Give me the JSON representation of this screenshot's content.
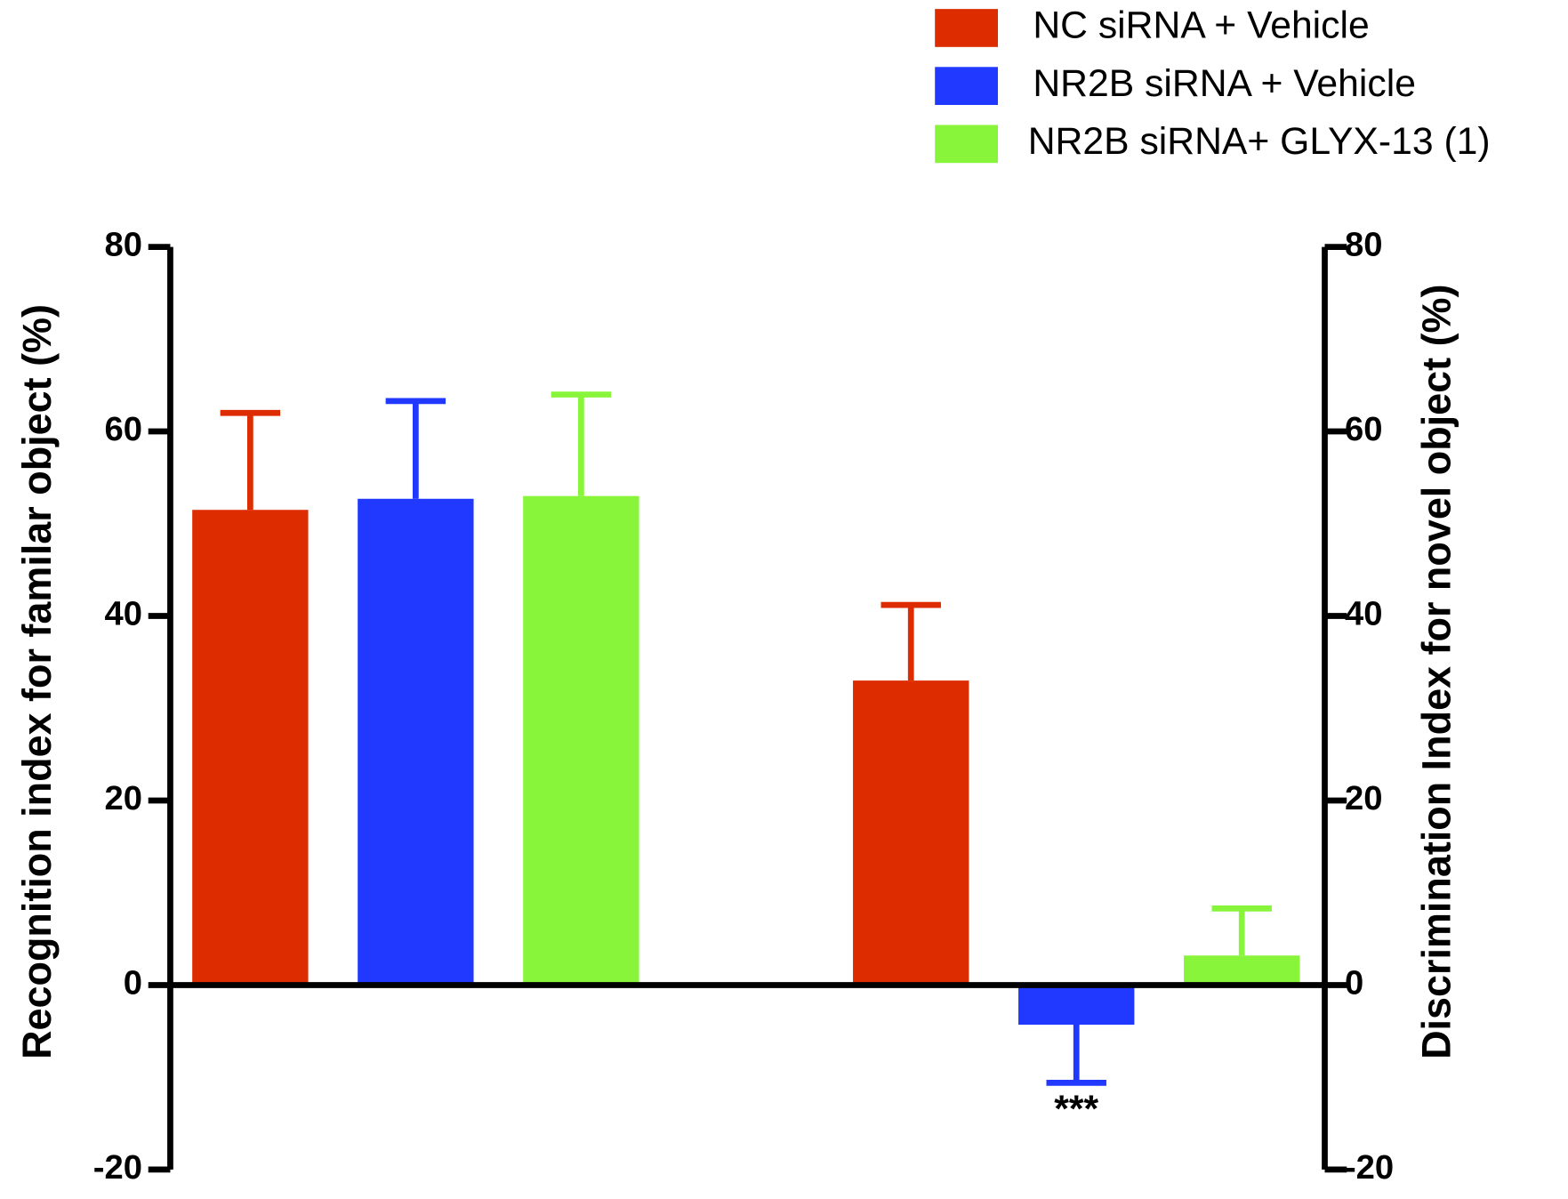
{
  "chart_data": {
    "type": "bar",
    "ylabel": "Recognition index for familar object  (%)",
    "y2label": "Discrimination Index for novel object  (%)",
    "categories": [
      null,
      null
    ],
    "category_axis": [
      "y",
      "y2"
    ],
    "series": [
      {
        "name": "NC siRNA + Vehicle",
        "color": "#dd2c00",
        "values": [
          51.5,
          33
        ],
        "errors": [
          10.5,
          8.2
        ]
      },
      {
        "name": "NR2B siRNA + Vehicle",
        "color": "#2138ff",
        "values": [
          52.7,
          -4.3
        ],
        "errors": [
          10.6,
          6.3
        ]
      },
      {
        "name": "NR2B siRNA+ GLYX-13 (1)",
        "color": "#88f53a",
        "values": [
          53,
          3.2
        ],
        "errors": [
          11,
          5.1
        ]
      }
    ],
    "annotations": [
      {
        "text": "***"
      }
    ],
    "ylim": [
      -20,
      80
    ],
    "yticks": [
      -20,
      0,
      20,
      40,
      60,
      80
    ],
    "y2lim": [
      -20,
      80
    ],
    "y2ticks": [
      -20,
      0,
      20,
      40,
      60,
      80
    ],
    "legend": "top-right"
  }
}
